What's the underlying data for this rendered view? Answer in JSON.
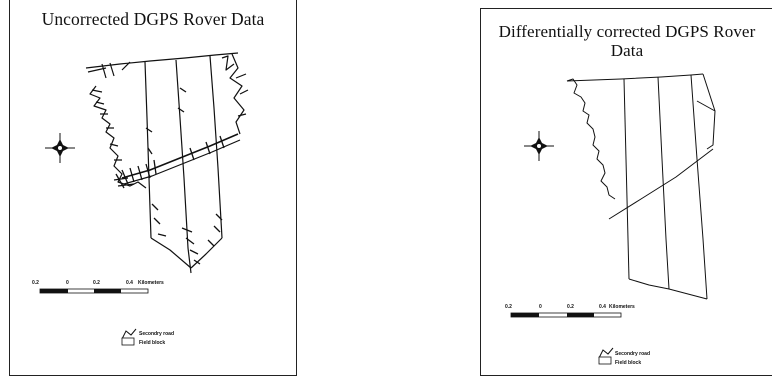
{
  "maps": [
    {
      "title": "Uncorrected DGPS Rover Data",
      "scale": {
        "ticks": [
          "0.2",
          "0",
          "0.2",
          "0.4"
        ],
        "unit": "Kilometers"
      },
      "legend": [
        "Secondry road",
        "Field block"
      ]
    },
    {
      "title": "Differentially corrected DGPS Rover Data",
      "scale": {
        "ticks": [
          "0.2",
          "0",
          "0.2",
          "0.4"
        ],
        "unit": "Kilometers"
      },
      "legend": [
        "Secondry road",
        "Field block"
      ]
    }
  ]
}
